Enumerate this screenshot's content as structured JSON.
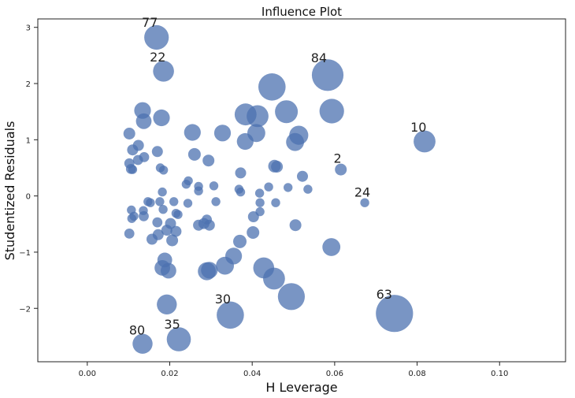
{
  "chart_data": {
    "type": "scatter",
    "title": "Influence Plot",
    "xlabel": "H Leverage",
    "ylabel": "Studentized Residuals",
    "xlim": [
      -0.012,
      0.116
    ],
    "ylim": [
      -2.95,
      3.15
    ],
    "xticks": [
      0.0,
      0.02,
      0.04,
      0.06,
      0.08,
      0.1
    ],
    "xtick_labels": [
      "0.00",
      "0.02",
      "0.04",
      "0.06",
      "0.08",
      "0.10"
    ],
    "yticks": [
      -2,
      -1,
      0,
      1,
      2,
      3
    ],
    "ytick_labels": [
      "−2",
      "−1",
      "0",
      "1",
      "2",
      "3"
    ],
    "grid": false,
    "marker_color": "#4c72b0",
    "marker_alpha": 0.75,
    "size_encoding": "Cook's distance (marker area)",
    "points": [
      {
        "x": 0.0168,
        "y": 2.82,
        "s": 3.0,
        "label": "77"
      },
      {
        "x": 0.0185,
        "y": 2.22,
        "s": 2.2,
        "label": "22"
      },
      {
        "x": 0.0583,
        "y": 2.15,
        "s": 5.0,
        "label": "84"
      },
      {
        "x": 0.0448,
        "y": 1.94,
        "s": 3.7
      },
      {
        "x": 0.0593,
        "y": 1.51,
        "s": 3.0
      },
      {
        "x": 0.0483,
        "y": 1.5,
        "s": 2.6
      },
      {
        "x": 0.0384,
        "y": 1.45,
        "s": 2.4
      },
      {
        "x": 0.0413,
        "y": 1.42,
        "s": 2.4
      },
      {
        "x": 0.0134,
        "y": 1.52,
        "s": 1.4
      },
      {
        "x": 0.018,
        "y": 1.39,
        "s": 1.4
      },
      {
        "x": 0.0137,
        "y": 1.33,
        "s": 1.2
      },
      {
        "x": 0.0255,
        "y": 1.13,
        "s": 1.4
      },
      {
        "x": 0.0328,
        "y": 1.12,
        "s": 1.4
      },
      {
        "x": 0.041,
        "y": 1.12,
        "s": 1.6
      },
      {
        "x": 0.0513,
        "y": 1.08,
        "s": 1.8
      },
      {
        "x": 0.0504,
        "y": 0.96,
        "s": 1.6
      },
      {
        "x": 0.0383,
        "y": 0.97,
        "s": 1.4
      },
      {
        "x": 0.0818,
        "y": 0.97,
        "s": 2.4,
        "label": "10"
      },
      {
        "x": 0.0102,
        "y": 1.11,
        "s": 0.7
      },
      {
        "x": 0.0124,
        "y": 0.9,
        "s": 0.6
      },
      {
        "x": 0.011,
        "y": 0.82,
        "s": 0.6
      },
      {
        "x": 0.017,
        "y": 0.79,
        "s": 0.6
      },
      {
        "x": 0.026,
        "y": 0.74,
        "s": 0.8
      },
      {
        "x": 0.0138,
        "y": 0.69,
        "s": 0.5
      },
      {
        "x": 0.0123,
        "y": 0.64,
        "s": 0.5
      },
      {
        "x": 0.0294,
        "y": 0.63,
        "s": 0.7
      },
      {
        "x": 0.0102,
        "y": 0.58,
        "s": 0.5
      },
      {
        "x": 0.0106,
        "y": 0.48,
        "s": 0.5
      },
      {
        "x": 0.011,
        "y": 0.47,
        "s": 0.4
      },
      {
        "x": 0.0177,
        "y": 0.5,
        "s": 0.4
      },
      {
        "x": 0.0185,
        "y": 0.46,
        "s": 0.4
      },
      {
        "x": 0.0454,
        "y": 0.53,
        "s": 0.8
      },
      {
        "x": 0.046,
        "y": 0.52,
        "s": 0.7
      },
      {
        "x": 0.0615,
        "y": 0.47,
        "s": 0.7,
        "label": "2"
      },
      {
        "x": 0.0372,
        "y": 0.41,
        "s": 0.6
      },
      {
        "x": 0.0522,
        "y": 0.35,
        "s": 0.6
      },
      {
        "x": 0.0245,
        "y": 0.27,
        "s": 0.4
      },
      {
        "x": 0.024,
        "y": 0.21,
        "s": 0.4
      },
      {
        "x": 0.027,
        "y": 0.17,
        "s": 0.4
      },
      {
        "x": 0.0307,
        "y": 0.18,
        "s": 0.4
      },
      {
        "x": 0.044,
        "y": 0.16,
        "s": 0.4
      },
      {
        "x": 0.0487,
        "y": 0.15,
        "s": 0.4
      },
      {
        "x": 0.0535,
        "y": 0.12,
        "s": 0.4
      },
      {
        "x": 0.0368,
        "y": 0.12,
        "s": 0.4
      },
      {
        "x": 0.027,
        "y": 0.09,
        "s": 0.4
      },
      {
        "x": 0.0182,
        "y": 0.07,
        "s": 0.4
      },
      {
        "x": 0.0372,
        "y": 0.07,
        "s": 0.4
      },
      {
        "x": 0.0418,
        "y": 0.05,
        "s": 0.4
      },
      {
        "x": 0.0147,
        "y": -0.1,
        "s": 0.4
      },
      {
        "x": 0.0153,
        "y": -0.12,
        "s": 0.4
      },
      {
        "x": 0.0176,
        "y": -0.1,
        "s": 0.4
      },
      {
        "x": 0.021,
        "y": -0.1,
        "s": 0.4
      },
      {
        "x": 0.0244,
        "y": -0.13,
        "s": 0.4
      },
      {
        "x": 0.0312,
        "y": -0.1,
        "s": 0.4
      },
      {
        "x": 0.0419,
        "y": -0.12,
        "s": 0.4
      },
      {
        "x": 0.0457,
        "y": -0.12,
        "s": 0.4
      },
      {
        "x": 0.0673,
        "y": -0.12,
        "s": 0.4,
        "label": "24"
      },
      {
        "x": 0.0107,
        "y": -0.25,
        "s": 0.4
      },
      {
        "x": 0.0136,
        "y": -0.26,
        "s": 0.4
      },
      {
        "x": 0.0184,
        "y": -0.24,
        "s": 0.4
      },
      {
        "x": 0.0215,
        "y": -0.31,
        "s": 0.4
      },
      {
        "x": 0.022,
        "y": -0.33,
        "s": 0.4
      },
      {
        "x": 0.0137,
        "y": -0.36,
        "s": 0.5
      },
      {
        "x": 0.0113,
        "y": -0.36,
        "s": 0.4
      },
      {
        "x": 0.0108,
        "y": -0.4,
        "s": 0.4
      },
      {
        "x": 0.0403,
        "y": -0.37,
        "s": 0.6
      },
      {
        "x": 0.0419,
        "y": -0.28,
        "s": 0.4
      },
      {
        "x": 0.029,
        "y": -0.42,
        "s": 0.5
      },
      {
        "x": 0.017,
        "y": -0.47,
        "s": 0.5
      },
      {
        "x": 0.0202,
        "y": -0.49,
        "s": 0.6
      },
      {
        "x": 0.027,
        "y": -0.52,
        "s": 0.6
      },
      {
        "x": 0.0283,
        "y": -0.49,
        "s": 0.6
      },
      {
        "x": 0.0296,
        "y": -0.52,
        "s": 0.6
      },
      {
        "x": 0.0505,
        "y": -0.52,
        "s": 0.7
      },
      {
        "x": 0.0193,
        "y": -0.61,
        "s": 0.6
      },
      {
        "x": 0.0215,
        "y": -0.63,
        "s": 0.6
      },
      {
        "x": 0.0102,
        "y": -0.67,
        "s": 0.5
      },
      {
        "x": 0.0172,
        "y": -0.69,
        "s": 0.6
      },
      {
        "x": 0.0157,
        "y": -0.77,
        "s": 0.6
      },
      {
        "x": 0.0206,
        "y": -0.79,
        "s": 0.7
      },
      {
        "x": 0.0402,
        "y": -0.65,
        "s": 0.8
      },
      {
        "x": 0.037,
        "y": -0.81,
        "s": 0.9
      },
      {
        "x": 0.0592,
        "y": -0.91,
        "s": 1.6
      },
      {
        "x": 0.0355,
        "y": -1.07,
        "s": 1.4
      },
      {
        "x": 0.0188,
        "y": -1.14,
        "s": 1.1
      },
      {
        "x": 0.0182,
        "y": -1.28,
        "s": 1.2
      },
      {
        "x": 0.0197,
        "y": -1.33,
        "s": 1.2
      },
      {
        "x": 0.0334,
        "y": -1.24,
        "s": 1.6
      },
      {
        "x": 0.029,
        "y": -1.34,
        "s": 1.6
      },
      {
        "x": 0.0296,
        "y": -1.32,
        "s": 1.4
      },
      {
        "x": 0.0428,
        "y": -1.28,
        "s": 2.2
      },
      {
        "x": 0.0453,
        "y": -1.47,
        "s": 2.4
      },
      {
        "x": 0.0495,
        "y": -1.79,
        "s": 3.6
      },
      {
        "x": 0.0193,
        "y": -1.93,
        "s": 2.0
      },
      {
        "x": 0.0347,
        "y": -2.12,
        "s": 3.7,
        "label": "30"
      },
      {
        "x": 0.0745,
        "y": -2.09,
        "s": 6.9,
        "label": "63"
      },
      {
        "x": 0.0134,
        "y": -2.63,
        "s": 2.0,
        "label": "80"
      },
      {
        "x": 0.0222,
        "y": -2.55,
        "s": 2.9,
        "label": "35"
      }
    ],
    "annotations": [
      "77",
      "22",
      "84",
      "10",
      "2",
      "24",
      "63",
      "30",
      "35",
      "80"
    ]
  }
}
